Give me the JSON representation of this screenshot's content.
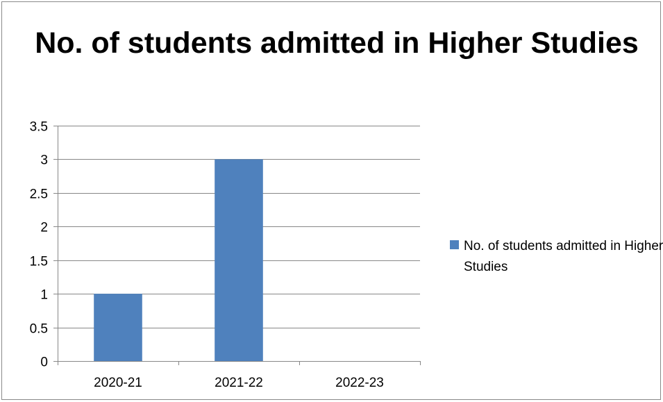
{
  "chart_data": {
    "type": "bar",
    "title": "No. of students admitted in Higher Studies",
    "categories": [
      "2020-21",
      "2021-22",
      "2022-23"
    ],
    "series": [
      {
        "name": "No. of students admitted in Higher Studies",
        "values": [
          1,
          3,
          0
        ],
        "color": "#4f81bd"
      }
    ],
    "ylim": [
      0,
      3.5
    ],
    "yticks": [
      "0",
      "0.5",
      "1",
      "1.5",
      "2",
      "2.5",
      "3",
      "3.5"
    ],
    "grid": true,
    "legend_position": "right"
  }
}
